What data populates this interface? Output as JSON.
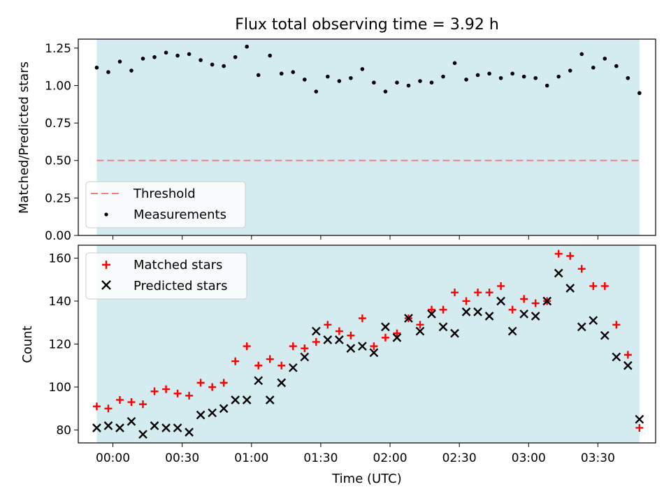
{
  "title": "Flux total observing time = 3.92 h",
  "chart_data": [
    {
      "type": "scatter",
      "ylabel": "Matched/Predicted stars",
      "ylim": [
        0,
        1.31
      ],
      "yticks": [
        0.0,
        0.25,
        0.5,
        0.75,
        1.0,
        1.25
      ],
      "ytick_labels": [
        "0.00",
        "0.25",
        "0.50",
        "0.75",
        "1.00",
        "1.25"
      ],
      "threshold": 0.5,
      "legend_position": "lower-left",
      "legend": [
        {
          "label": "Threshold",
          "marker": "dashed-line",
          "color": "#f08080"
        },
        {
          "label": "Measurements",
          "marker": "dot",
          "color": "#000000"
        }
      ],
      "series": [
        {
          "name": "Measurements",
          "color": "#000000",
          "x": [
            "23:53",
            "23:58",
            "00:03",
            "00:08",
            "00:13",
            "00:18",
            "00:23",
            "00:28",
            "00:33",
            "00:38",
            "00:43",
            "00:48",
            "00:53",
            "00:58",
            "01:03",
            "01:08",
            "01:13",
            "01:18",
            "01:23",
            "01:28",
            "01:33",
            "01:38",
            "01:43",
            "01:48",
            "01:53",
            "01:58",
            "02:03",
            "02:08",
            "02:13",
            "02:18",
            "02:23",
            "02:28",
            "02:33",
            "02:38",
            "02:43",
            "02:48",
            "02:53",
            "02:58",
            "03:03",
            "03:08",
            "03:13",
            "03:18",
            "03:23",
            "03:28",
            "03:33",
            "03:38",
            "03:43",
            "03:48"
          ],
          "y": [
            1.12,
            1.09,
            1.16,
            1.1,
            1.18,
            1.19,
            1.22,
            1.2,
            1.21,
            1.17,
            1.14,
            1.13,
            1.19,
            1.26,
            1.07,
            1.2,
            1.08,
            1.09,
            1.04,
            0.96,
            1.06,
            1.03,
            1.05,
            1.11,
            1.02,
            0.96,
            1.02,
            1.0,
            1.03,
            1.02,
            1.06,
            1.15,
            1.04,
            1.07,
            1.08,
            1.05,
            1.08,
            1.06,
            1.05,
            1.0,
            1.06,
            1.1,
            1.21,
            1.12,
            1.18,
            1.13,
            1.05,
            0.95
          ]
        }
      ]
    },
    {
      "type": "scatter",
      "xlabel": "Time (UTC)",
      "ylabel": "Count",
      "ylim": [
        74,
        166
      ],
      "yticks": [
        80,
        100,
        120,
        140,
        160
      ],
      "xlim": [
        "23:45",
        "03:55"
      ],
      "xticks": [
        "00:00",
        "00:30",
        "01:00",
        "01:30",
        "02:00",
        "02:30",
        "03:00",
        "03:30"
      ],
      "legend_position": "top-left",
      "legend": [
        {
          "label": "Matched stars",
          "marker": "plus",
          "color": "#ff0000"
        },
        {
          "label": "Predicted stars",
          "marker": "x",
          "color": "#000000"
        }
      ],
      "series": [
        {
          "name": "Matched stars",
          "color": "#ff0000",
          "y": [
            91,
            90,
            94,
            93,
            92,
            98,
            99,
            97,
            96,
            102,
            100,
            102,
            112,
            119,
            110,
            113,
            110,
            119,
            118,
            121,
            129,
            126,
            124,
            132,
            119,
            123,
            125,
            132,
            129,
            136,
            136,
            144,
            140,
            144,
            144,
            147,
            136,
            141,
            139,
            140,
            162,
            161,
            155,
            147,
            147,
            129,
            115,
            81
          ]
        },
        {
          "name": "Predicted stars",
          "color": "#000000",
          "y": [
            81,
            82,
            81,
            84,
            78,
            82,
            81,
            81,
            79,
            87,
            88,
            90,
            94,
            94,
            103,
            94,
            102,
            109,
            114,
            126,
            122,
            122,
            118,
            119,
            116,
            128,
            123,
            132,
            126,
            134,
            128,
            125,
            135,
            135,
            133,
            140,
            126,
            134,
            133,
            140,
            153,
            146,
            128,
            131,
            124,
            114,
            110,
            85
          ]
        }
      ]
    }
  ],
  "colors": {
    "observing_band": "#d4ebf0",
    "threshold": "#f08080",
    "matched": "#ff0000",
    "predicted": "#000000"
  }
}
